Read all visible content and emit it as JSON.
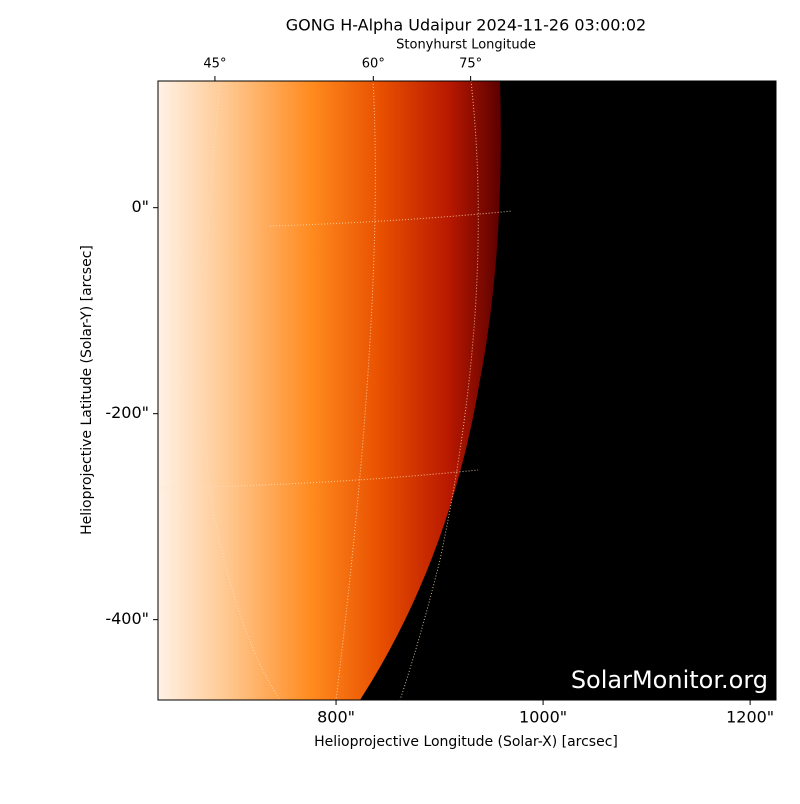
{
  "chart_data": {
    "type": "image",
    "title": "GONG H-Alpha Udaipur 2024-11-26 03:00:02",
    "x_label": "Helioprojective Longitude (Solar-X) [arcsec]",
    "y_label": "Helioprojective Latitude (Solar-Y) [arcsec]",
    "x2_label": "Stonyhurst Longitude",
    "watermark": "SolarMonitor.org",
    "xlim": [
      628,
      1225
    ],
    "ylim": [
      -478,
      123
    ],
    "xticks": [
      {
        "value": 800,
        "label": "800\""
      },
      {
        "value": 1000,
        "label": "1000\""
      },
      {
        "value": 1200,
        "label": "1200\""
      }
    ],
    "yticks": [
      {
        "value": 0,
        "label": "0\""
      },
      {
        "value": -200,
        "label": "-200\""
      },
      {
        "value": -400,
        "label": "-400\""
      }
    ],
    "x2ticks": [
      {
        "value": 683,
        "label": "45°"
      },
      {
        "value": 836,
        "label": "60°"
      },
      {
        "value": 930,
        "label": "75°"
      }
    ]
  }
}
